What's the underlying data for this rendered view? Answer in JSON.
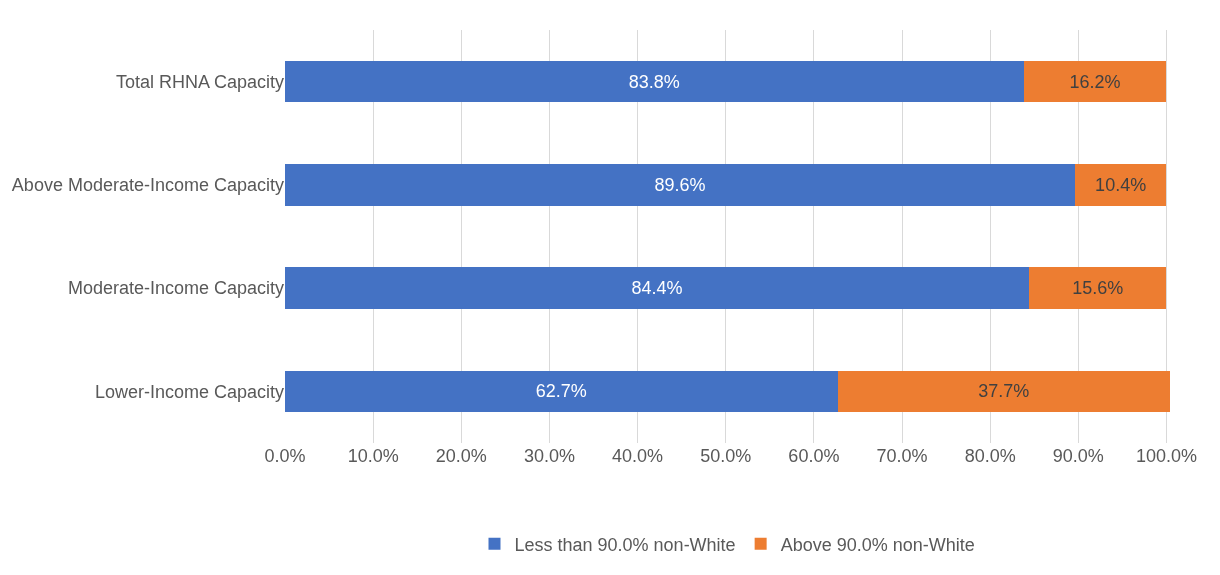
{
  "chart_data": {
    "type": "bar",
    "orientation": "horizontal",
    "stacked": true,
    "categories": [
      "Total RHNA Capacity",
      "Above Moderate-Income Capacity",
      "Moderate-Income Capacity",
      "Lower-Income Capacity"
    ],
    "series": [
      {
        "name": "Less than 90.0% non-White",
        "color": "#4472c4",
        "values": [
          83.8,
          89.6,
          84.4,
          62.7
        ],
        "value_labels": [
          "83.8%",
          "89.6%",
          "84.4%",
          "62.7%"
        ]
      },
      {
        "name": "Above 90.0% non-White",
        "color": "#ed7d31",
        "values": [
          16.2,
          10.4,
          15.6,
          37.7
        ],
        "value_labels": [
          "16.2%",
          "10.4%",
          "15.6%",
          "37.7%"
        ]
      }
    ],
    "xlim": [
      0,
      100.4
    ],
    "xticks": [
      {
        "value": 0,
        "label": "0.0%"
      },
      {
        "value": 10,
        "label": "10.0%"
      },
      {
        "value": 20,
        "label": "20.0%"
      },
      {
        "value": 30,
        "label": "30.0%"
      },
      {
        "value": 40,
        "label": "40.0%"
      },
      {
        "value": 50,
        "label": "50.0%"
      },
      {
        "value": 60,
        "label": "60.0%"
      },
      {
        "value": 70,
        "label": "70.0%"
      },
      {
        "value": 80,
        "label": "80.0%"
      },
      {
        "value": 90,
        "label": "90.0%"
      },
      {
        "value": 100,
        "label": "100.0%"
      }
    ],
    "grid": "x",
    "legend": "bottom"
  }
}
